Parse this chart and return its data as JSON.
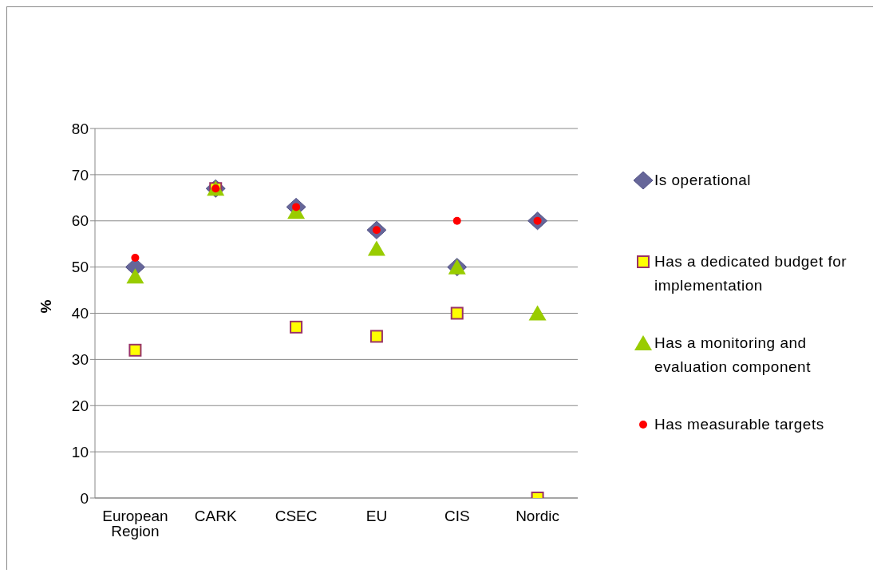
{
  "chart_data": {
    "type": "scatter",
    "ylabel": "%",
    "categories": [
      "European Region",
      "CARK",
      "CSEC",
      "EU",
      "CIS",
      "Nordic"
    ],
    "ylim": [
      0,
      80
    ],
    "yticks": [
      0,
      10,
      20,
      30,
      40,
      50,
      60,
      70,
      80
    ],
    "grid": "y",
    "legend": "right",
    "series": [
      {
        "name": "Is operational",
        "color": "#666699",
        "marker": "diamond",
        "values": [
          50,
          67,
          63,
          58,
          50,
          60
        ]
      },
      {
        "name": "Has a dedicated budget for implementation",
        "color": "#ffff00",
        "marker": "square",
        "values": [
          32,
          67,
          37,
          35,
          40,
          0
        ]
      },
      {
        "name": "Has a monitoring and evaluation component",
        "color": "#99cc00",
        "marker": "triangle",
        "values": [
          48,
          67,
          62,
          54,
          50,
          40
        ]
      },
      {
        "name": "Has measurable targets",
        "color": "#ff0000",
        "marker": "circle",
        "values": [
          52,
          67,
          63,
          58,
          60,
          60
        ]
      }
    ]
  }
}
